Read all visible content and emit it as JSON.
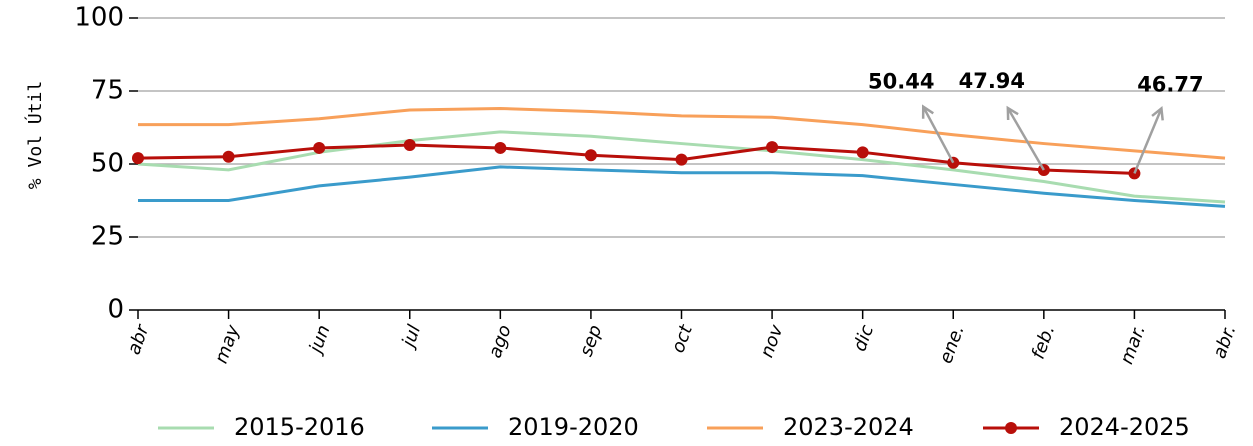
{
  "chart_data": {
    "type": "line",
    "y_label": "% Vol Útil",
    "categories": [
      "abr",
      "may",
      "jun",
      "jul",
      "ago",
      "sep",
      "oct",
      "nov",
      "dic",
      "ene.",
      "feb.",
      "mar.",
      "abr."
    ],
    "series": [
      {
        "name": "2015-2016",
        "color": "#a8dcb0",
        "values": [
          50,
          48,
          54,
          58,
          61,
          59.5,
          57,
          54.5,
          51.5,
          48,
          44,
          39,
          37
        ]
      },
      {
        "name": "2019-2020",
        "color": "#3a9bcb",
        "values": [
          37.5,
          37.5,
          42.5,
          45.5,
          49,
          48,
          47,
          47,
          46,
          43,
          40,
          37.5,
          35.5
        ]
      },
      {
        "name": "2023-2024",
        "color": "#f8a05a",
        "values": [
          63.5,
          63.5,
          65.5,
          68.5,
          69,
          68,
          66.5,
          66,
          63.5,
          60,
          57,
          54.5,
          52
        ]
      },
      {
        "name": "2024-2025",
        "color": "#b80f0a",
        "markers": true,
        "values": [
          52,
          52.5,
          55.5,
          56.5,
          55.5,
          53,
          51.5,
          55.8,
          54,
          50.44,
          47.94,
          46.77,
          null
        ],
        "value_labels": [
          null,
          null,
          null,
          null,
          null,
          null,
          null,
          null,
          null,
          "50.44",
          "47.94",
          "46.77",
          null
        ]
      }
    ],
    "ylim": [
      0,
      100
    ],
    "yticks": [
      0,
      25,
      50,
      75,
      100
    ],
    "grid": true,
    "legend": "bottom"
  }
}
